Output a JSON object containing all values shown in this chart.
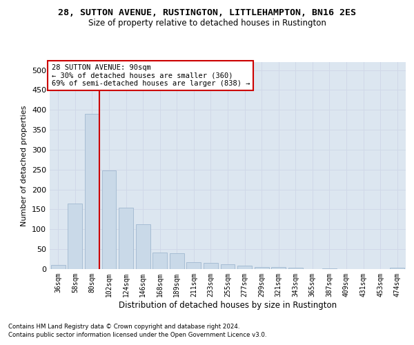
{
  "title": "28, SUTTON AVENUE, RUSTINGTON, LITTLEHAMPTON, BN16 2ES",
  "subtitle": "Size of property relative to detached houses in Rustington",
  "xlabel": "Distribution of detached houses by size in Rustington",
  "ylabel": "Number of detached properties",
  "categories": [
    "36sqm",
    "58sqm",
    "80sqm",
    "102sqm",
    "124sqm",
    "146sqm",
    "168sqm",
    "189sqm",
    "211sqm",
    "233sqm",
    "255sqm",
    "277sqm",
    "299sqm",
    "321sqm",
    "343sqm",
    "365sqm",
    "387sqm",
    "409sqm",
    "431sqm",
    "453sqm",
    "474sqm"
  ],
  "values": [
    11,
    165,
    390,
    248,
    155,
    113,
    42,
    40,
    18,
    15,
    13,
    8,
    6,
    5,
    3,
    0,
    2,
    0,
    0,
    0,
    4
  ],
  "bar_color": "#c9d9e8",
  "bar_edge_color": "#a0b8d0",
  "vline_index": 2,
  "annotation_title": "28 SUTTON AVENUE: 90sqm",
  "annotation_line1": "← 30% of detached houses are smaller (360)",
  "annotation_line2": "69% of semi-detached houses are larger (838) →",
  "annotation_box_color": "#ffffff",
  "annotation_box_edge_color": "#cc0000",
  "vline_color": "#cc0000",
  "grid_color": "#d0d8e8",
  "background_color": "#dce6f0",
  "footer1": "Contains HM Land Registry data © Crown copyright and database right 2024.",
  "footer2": "Contains public sector information licensed under the Open Government Licence v3.0.",
  "ylim": [
    0,
    520
  ],
  "yticks": [
    0,
    50,
    100,
    150,
    200,
    250,
    300,
    350,
    400,
    450,
    500
  ]
}
